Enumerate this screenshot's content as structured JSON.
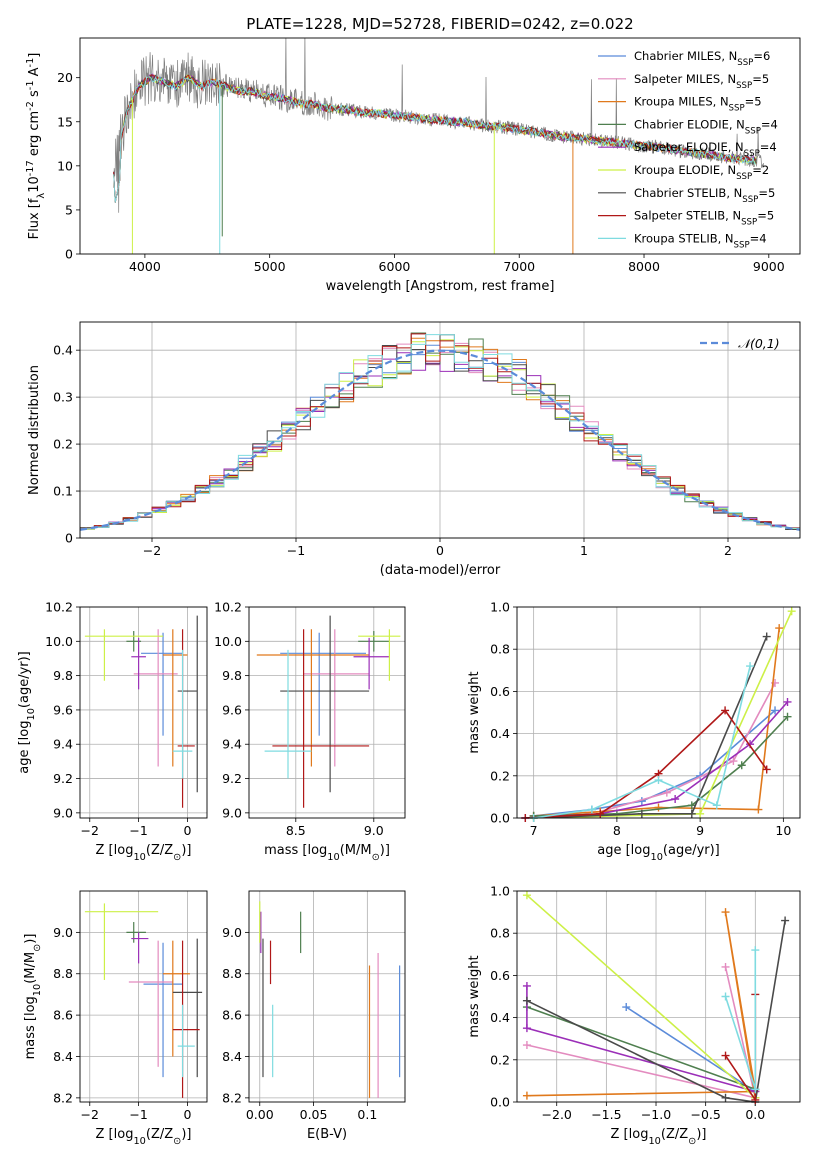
{
  "figure_title": "PLATE=1228, MJD=52728, FIBERID=0242, z=0.022",
  "series_colors": [
    "#5b8bd9",
    "#e38bbf",
    "#e0791c",
    "#4f7f4f",
    "#9b2fb8",
    "#cdf047",
    "#4a4a4a",
    "#b01818",
    "#7fdbe0"
  ],
  "chart_data": [
    {
      "id": "spectrum",
      "type": "line",
      "xlabel": "wavelength [Angstrom, rest frame]",
      "ylabel": "Flux [f$_\\lambda$10$^{-17}$ erg cm$^{-2}$ s$^{-1}$ A$^{-1}$]",
      "xlim": [
        3480,
        9250
      ],
      "ylim": [
        0,
        24.5
      ],
      "xticks": [
        4000,
        5000,
        6000,
        7000,
        8000,
        9000
      ],
      "yticks": [
        0,
        5,
        10,
        15,
        20
      ],
      "grid": false,
      "legend_position": "top-right",
      "legend": [
        {
          "name": "Chabrier MILES",
          "nssp": "6"
        },
        {
          "name": "Salpeter MILES",
          "nssp": "5"
        },
        {
          "name": "Kroupa MILES",
          "nssp": "5"
        },
        {
          "name": "Chabrier ELODIE",
          "nssp": "4"
        },
        {
          "name": "Salpeter ELODIE",
          "nssp": "4"
        },
        {
          "name": "Kroupa ELODIE",
          "nssp": "2"
        },
        {
          "name": "Chabrier STELIB",
          "nssp": "5"
        },
        {
          "name": "Salpeter STELIB",
          "nssp": "5"
        },
        {
          "name": "Kroupa STELIB",
          "nssp": "4"
        }
      ],
      "data_spectrum": {
        "x": [
          3750,
          3850,
          3950,
          4050,
          4150,
          4250,
          4350,
          4450,
          4550,
          4650,
          4750,
          4850,
          4950,
          5050,
          5150,
          5250,
          5350,
          5450,
          5550,
          5650,
          5750,
          5850,
          5950,
          6050,
          6150,
          6250,
          6350,
          6450,
          6550,
          6650,
          6750,
          6850,
          6950,
          7050,
          7150,
          7250,
          7350,
          7450,
          7550,
          7650,
          7750,
          7850,
          7950,
          8050,
          8150,
          8250,
          8350,
          8450,
          8550,
          8650,
          8750,
          8850,
          8950
        ],
        "y": [
          9,
          16,
          19,
          20,
          19.5,
          19,
          20,
          19,
          19.5,
          19,
          18.5,
          18.5,
          18,
          17.8,
          17.5,
          17,
          17,
          16.5,
          16.5,
          16.3,
          16,
          16,
          15.8,
          15.7,
          15.5,
          15.3,
          15.2,
          15,
          15,
          14.7,
          14.5,
          14.4,
          14.2,
          14,
          13.8,
          13.5,
          13.3,
          13.2,
          13,
          12.8,
          12.7,
          12.5,
          12.3,
          12.2,
          12,
          11.8,
          11.6,
          11.4,
          11.2,
          11,
          10.8,
          10.7,
          10.5
        ]
      },
      "model_dips": [
        {
          "series": 5,
          "x": 3900,
          "to": 0
        },
        {
          "series": 8,
          "x": 4600,
          "to": 0
        },
        {
          "series": 5,
          "x": 6800,
          "to": 0
        },
        {
          "series": 2,
          "x": 7430,
          "to": 0
        },
        {
          "series": 3,
          "x": 4620,
          "to": 2
        }
      ]
    },
    {
      "id": "residuals",
      "type": "step",
      "xlabel": "(data-model)/error",
      "ylabel": "Normed distribution",
      "xlim": [
        -2.5,
        2.5
      ],
      "ylim": [
        0,
        0.46
      ],
      "xticks": [
        -2,
        -1,
        0,
        1,
        2
      ],
      "yticks": [
        0,
        0.1,
        0.2,
        0.3,
        0.4
      ],
      "grid": true,
      "legend_position": "top-right",
      "legend": [
        {
          "name": "$\\mathcal{N}(0,1)$",
          "style": "dashed"
        }
      ],
      "bin_width": 0.1,
      "bin_start": -2.5
    },
    {
      "id": "age_vs_Z",
      "type": "errorbar",
      "xlabel": "Z [log$_{10}$($Z/Z_\\odot$)]",
      "ylabel": "age  [log$_{10}$($age/yr$)]",
      "xlim": [
        -2.2,
        0.4
      ],
      "ylim": [
        8.97,
        10.2
      ],
      "xticks": [
        -2,
        -1,
        0
      ],
      "yticks": [
        9.0,
        9.2,
        9.4,
        9.6,
        9.8,
        10.0,
        10.2
      ],
      "grid": true,
      "points": [
        {
          "s": 0,
          "x": -0.5,
          "y": 9.93,
          "xe": [
            -0.95,
            -0.1
          ],
          "ye": [
            9.45,
            10.05
          ]
        },
        {
          "s": 1,
          "x": -0.6,
          "y": 9.81,
          "xe": [
            -1.1,
            -0.2
          ],
          "ye": [
            9.27,
            10.07
          ]
        },
        {
          "s": 2,
          "x": -0.3,
          "y": 9.92,
          "xe": [
            -0.5,
            0.0
          ],
          "ye": [
            9.27,
            10.07
          ]
        },
        {
          "s": 3,
          "x": -1.1,
          "y": 10.0,
          "xe": [
            -1.25,
            -0.95
          ],
          "ye": [
            9.94,
            10.06
          ]
        },
        {
          "s": 4,
          "x": -1.0,
          "y": 9.91,
          "xe": [
            -1.15,
            -0.85
          ],
          "ye": [
            9.72,
            10.02
          ]
        },
        {
          "s": 5,
          "x": -1.7,
          "y": 10.03,
          "xe": [
            -2.1,
            -0.5
          ],
          "ye": [
            9.77,
            10.07
          ]
        },
        {
          "s": 6,
          "x": 0.2,
          "y": 9.71,
          "xe": [
            -0.2,
            0.2
          ],
          "ye": [
            9.12,
            10.15
          ]
        },
        {
          "s": 7,
          "x": -0.1,
          "y": 9.39,
          "xe": [
            -0.2,
            0.15
          ],
          "ye": [
            9.03,
            10.07
          ]
        },
        {
          "s": 8,
          "x": -0.1,
          "y": 9.36,
          "xe": [
            -0.3,
            0.1
          ],
          "ye": [
            9.2,
            9.95
          ]
        }
      ]
    },
    {
      "id": "age_vs_mass",
      "type": "errorbar",
      "xlabel": "mass [log$_{10}$($M/M_\\odot$)]",
      "ylabel": "",
      "xlim": [
        8.2,
        9.2
      ],
      "ylim": [
        8.97,
        10.2
      ],
      "xticks": [
        8.5,
        9.0
      ],
      "yticks": [
        9.0,
        9.2,
        9.4,
        9.6,
        9.8,
        10.0,
        10.2
      ],
      "grid": true,
      "points": [
        {
          "s": 0,
          "x": 8.65,
          "y": 9.93,
          "xe": [
            8.4,
            8.95
          ],
          "ye": [
            9.45,
            10.05
          ]
        },
        {
          "s": 1,
          "x": 8.75,
          "y": 9.81,
          "xe": [
            8.55,
            8.97
          ],
          "ye": [
            9.27,
            10.07
          ]
        },
        {
          "s": 2,
          "x": 8.6,
          "y": 9.92,
          "xe": [
            8.25,
            8.97
          ],
          "ye": [
            9.27,
            10.07
          ]
        },
        {
          "s": 3,
          "x": 9.0,
          "y": 10.0,
          "xe": [
            8.9,
            9.1
          ],
          "ye": [
            9.94,
            10.06
          ]
        },
        {
          "s": 4,
          "x": 8.97,
          "y": 9.91,
          "xe": [
            8.87,
            9.1
          ],
          "ye": [
            9.72,
            10.02
          ]
        },
        {
          "s": 5,
          "x": 9.1,
          "y": 10.03,
          "xe": [
            8.9,
            9.17
          ],
          "ye": [
            9.77,
            10.07
          ]
        },
        {
          "s": 6,
          "x": 8.72,
          "y": 9.71,
          "xe": [
            8.4,
            8.97
          ],
          "ye": [
            9.12,
            10.15
          ]
        },
        {
          "s": 7,
          "x": 8.55,
          "y": 9.39,
          "xe": [
            8.35,
            8.97
          ],
          "ye": [
            9.03,
            10.07
          ]
        },
        {
          "s": 8,
          "x": 8.45,
          "y": 9.36,
          "xe": [
            8.3,
            8.6
          ],
          "ye": [
            9.2,
            9.95
          ]
        }
      ]
    },
    {
      "id": "weight_vs_age",
      "type": "line",
      "xlabel": "age  [log$_{10}$($age/yr$)]",
      "ylabel": "mass weight",
      "xlim": [
        6.8,
        10.2
      ],
      "ylim": [
        0,
        1.0
      ],
      "xticks": [
        7,
        8,
        9,
        10
      ],
      "yticks": [
        0,
        0.2,
        0.4,
        0.6,
        0.8,
        1.0
      ],
      "grid": true,
      "series": [
        {
          "s": 0,
          "x": [
            7.0,
            7.7,
            8.3,
            9.0,
            9.9
          ],
          "y": [
            0.01,
            0.04,
            0.08,
            0.2,
            0.51
          ]
        },
        {
          "s": 1,
          "x": 7.0,
          "y": 0,
          "xs": [
            7.0,
            7.8,
            8.6,
            9.4,
            9.9
          ],
          "ys": [
            0.01,
            0.03,
            0.12,
            0.27,
            0.64
          ]
        },
        {
          "s": 2,
          "x": [
            7.0,
            7.8,
            8.5,
            9.7,
            9.95
          ],
          "y": [
            0.01,
            0.03,
            0.05,
            0.04,
            0.9
          ]
        },
        {
          "s": 3,
          "x": [
            7.0,
            8.0,
            8.9,
            9.5,
            10.05
          ],
          "y": [
            0.01,
            0.02,
            0.06,
            0.25,
            0.48
          ]
        },
        {
          "s": 4,
          "x": [
            6.9,
            7.8,
            8.7,
            9.6,
            10.05
          ],
          "y": [
            0.0,
            0.02,
            0.09,
            0.35,
            0.55
          ]
        },
        {
          "s": 5,
          "x": [
            7.0,
            9.0,
            10.1
          ],
          "y": [
            0.0,
            0.02,
            0.98
          ]
        },
        {
          "s": 6,
          "x": [
            7.0,
            8.3,
            8.9,
            9.8
          ],
          "y": [
            0.0,
            0.02,
            0.02,
            0.86
          ]
        },
        {
          "s": 7,
          "x": [
            6.9,
            7.8,
            8.5,
            9.3,
            9.8
          ],
          "y": [
            0.0,
            0.02,
            0.21,
            0.51,
            0.23
          ]
        },
        {
          "s": 8,
          "x": [
            7.0,
            7.7,
            8.5,
            9.2,
            9.6
          ],
          "y": [
            0.0,
            0.04,
            0.18,
            0.06,
            0.72
          ]
        }
      ]
    },
    {
      "id": "mass_vs_Z",
      "type": "errorbar",
      "xlabel": "Z [log$_{10}$($Z/Z_\\odot$)]",
      "ylabel": "mass [log$_{10}$($M/M_\\odot$)]",
      "xlim": [
        -2.2,
        0.4
      ],
      "ylim": [
        8.18,
        9.2
      ],
      "xticks": [
        -2,
        -1,
        0
      ],
      "yticks": [
        8.2,
        8.4,
        8.6,
        8.8,
        9.0
      ],
      "grid": true,
      "points": [
        {
          "s": 0,
          "x": -0.5,
          "y": 8.75,
          "xe": [
            -0.9,
            -0.1
          ],
          "ye": [
            8.3,
            8.95
          ]
        },
        {
          "s": 1,
          "x": -0.6,
          "y": 8.76,
          "xe": [
            -1.2,
            -0.3
          ],
          "ye": [
            8.35,
            8.96
          ]
        },
        {
          "s": 2,
          "x": -0.3,
          "y": 8.8,
          "xe": [
            -0.5,
            0.05
          ],
          "ye": [
            8.4,
            8.96
          ]
        },
        {
          "s": 3,
          "x": -1.1,
          "y": 9.0,
          "xe": [
            -1.25,
            -0.85
          ],
          "ye": [
            8.95,
            9.05
          ]
        },
        {
          "s": 4,
          "x": -1.0,
          "y": 8.97,
          "xe": [
            -1.15,
            -0.8
          ],
          "ye": [
            8.85,
            9.0
          ]
        },
        {
          "s": 5,
          "x": -1.7,
          "y": 9.1,
          "xe": [
            -2.1,
            -0.6
          ],
          "ye": [
            8.77,
            9.14
          ]
        },
        {
          "s": 6,
          "x": 0.2,
          "y": 8.71,
          "xe": [
            -0.3,
            0.3
          ],
          "ye": [
            8.3,
            8.97
          ]
        },
        {
          "s": 7,
          "x": -0.1,
          "y": 8.53,
          "xe": [
            -0.3,
            0.25
          ],
          "ye": [
            8.2,
            8.96
          ]
        },
        {
          "s": 8,
          "x": -0.1,
          "y": 8.45,
          "xe": [
            -0.2,
            0.15
          ],
          "ye": [
            8.3,
            8.65
          ]
        }
      ]
    },
    {
      "id": "mass_vs_ebv",
      "type": "errorbar",
      "xlabel": "E(B-V)",
      "ylabel": "",
      "xlim": [
        -0.01,
        0.135
      ],
      "ylim": [
        8.18,
        9.2
      ],
      "xticks": [
        0.0,
        0.05,
        0.1
      ],
      "yticks": [
        8.2,
        8.4,
        8.6,
        8.8,
        9.0
      ],
      "grid": true,
      "points": [
        {
          "s": 0,
          "x": 0.13,
          "y": 8.55,
          "xe": [
            0.13,
            0.13
          ],
          "ye": [
            8.3,
            8.84
          ]
        },
        {
          "s": 1,
          "x": 0.11,
          "y": 8.55,
          "xe": [
            0.11,
            0.11
          ],
          "ye": [
            8.2,
            8.9
          ]
        },
        {
          "s": 2,
          "x": 0.102,
          "y": 8.5,
          "xe": [
            0.102,
            0.102
          ],
          "ye": [
            8.2,
            8.84
          ]
        },
        {
          "s": 3,
          "x": 0.038,
          "y": 9.0,
          "xe": [
            0.038,
            0.038
          ],
          "ye": [
            8.9,
            9.1
          ]
        },
        {
          "s": 4,
          "x": 0.001,
          "y": 9.0,
          "xe": [
            0.001,
            0.001
          ],
          "ye": [
            8.9,
            9.1
          ]
        },
        {
          "s": 5,
          "x": 0.0,
          "y": 9.05,
          "xe": [
            0.0,
            0.0
          ],
          "ye": [
            8.95,
            9.15
          ]
        },
        {
          "s": 6,
          "x": 0.003,
          "y": 8.6,
          "xe": [
            0.003,
            0.003
          ],
          "ye": [
            8.3,
            8.97
          ]
        },
        {
          "s": 7,
          "x": 0.01,
          "y": 8.85,
          "xe": [
            0.01,
            0.01
          ],
          "ye": [
            8.75,
            8.96
          ]
        },
        {
          "s": 8,
          "x": 0.012,
          "y": 8.5,
          "xe": [
            0.012,
            0.012
          ],
          "ye": [
            8.3,
            8.65
          ]
        }
      ]
    },
    {
      "id": "weight_vs_Z",
      "type": "line",
      "xlabel": "Z [log$_{10}$($Z/Z_\\odot$)]",
      "ylabel": "mass weight",
      "xlim": [
        -2.4,
        0.45
      ],
      "ylim": [
        0,
        1.0
      ],
      "xticks": [
        -2.0,
        -1.5,
        -1.0,
        -0.5,
        0.0
      ],
      "yticks": [
        0,
        0.2,
        0.4,
        0.6,
        0.8,
        1.0
      ],
      "grid": true,
      "series": [
        {
          "s": 0,
          "x": [
            -1.3,
            0.0
          ],
          "y": [
            0.45,
            0.05
          ]
        },
        {
          "s": 1,
          "x": [
            -2.3,
            0.0,
            -0.3
          ],
          "y": [
            0.27,
            0.02,
            0.64
          ]
        },
        {
          "s": 2,
          "x": [
            -2.3,
            0.0,
            -0.3,
            0.0
          ],
          "y": [
            0.03,
            0.05,
            0.9,
            0.02
          ]
        },
        {
          "s": 3,
          "x": [
            -2.3,
            0.0
          ],
          "y": [
            0.45,
            0.06
          ]
        },
        {
          "s": 4,
          "x": [
            -2.3,
            -2.3,
            0.0
          ],
          "y": [
            0.55,
            0.35,
            0.05
          ]
        },
        {
          "s": 5,
          "x": [
            -2.3,
            0.0
          ],
          "y": [
            0.98,
            0.02
          ]
        },
        {
          "s": 6,
          "x": [
            -2.3,
            -0.3,
            0.0,
            0.3
          ],
          "y": [
            0.48,
            0.02,
            0.0,
            0.86
          ]
        },
        {
          "s": 7,
          "x": [
            -0.3,
            0.0,
            0.0
          ],
          "y": [
            0.22,
            0.01,
            0.51
          ]
        },
        {
          "s": 8,
          "x": [
            -0.3,
            0.0,
            0.0
          ],
          "y": [
            0.5,
            0.06,
            0.72
          ]
        }
      ]
    }
  ]
}
